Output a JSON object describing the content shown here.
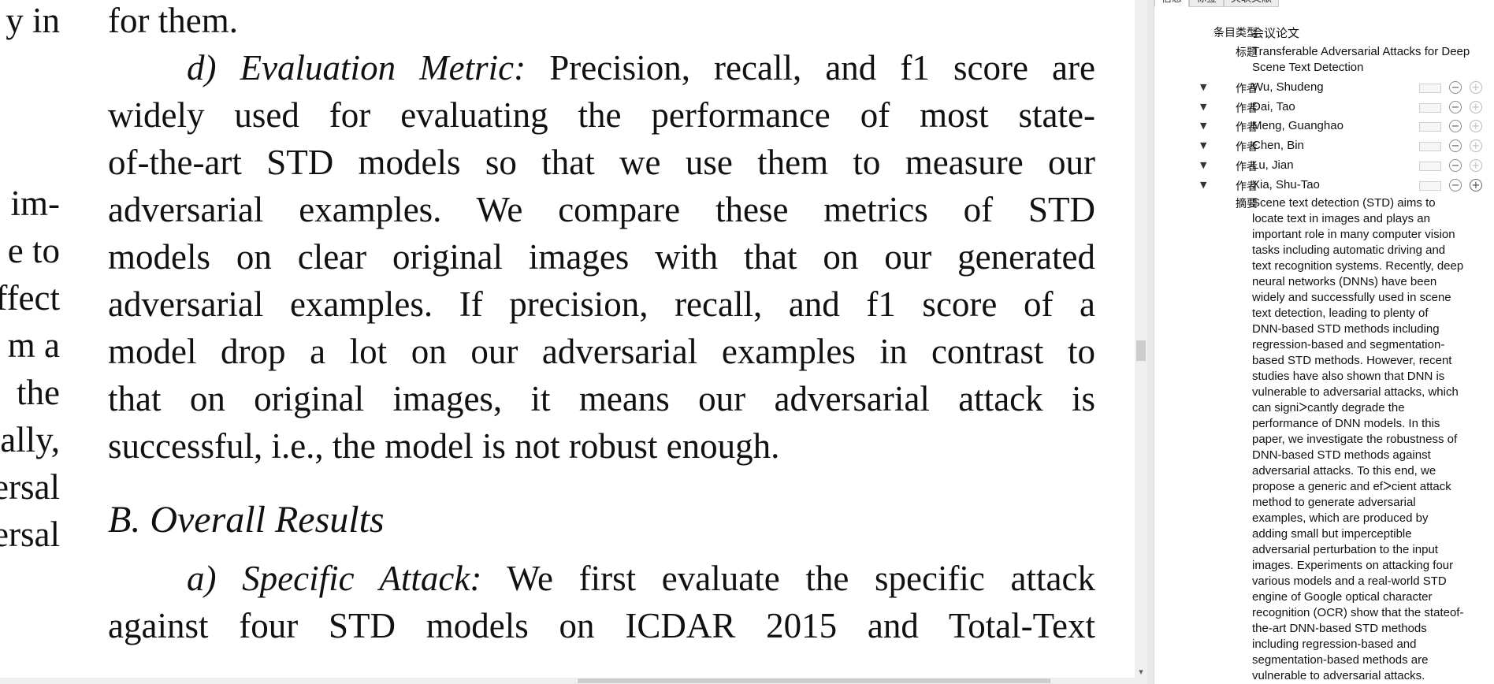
{
  "document": {
    "left_column_fragments": [
      "y in",
      "im-",
      "e to",
      "ffect",
      "m a",
      "the",
      "ally,",
      "ersal",
      "ersal"
    ],
    "main_lines": [
      {
        "text": "for them.",
        "style": "plain"
      },
      {
        "lead": "d) Evaluation Metric:",
        "text": " Precision, recall, and f1 score are",
        "style": "indent"
      },
      {
        "text": "widely used for evaluating the performance of most state-",
        "style": "justify"
      },
      {
        "text": "of-the-art STD models so that we use them to measure our",
        "style": "justify"
      },
      {
        "text": "adversarial examples. We compare these metrics of STD",
        "style": "justify"
      },
      {
        "text": "models on clear original images with that on our generated",
        "style": "justify"
      },
      {
        "text": "adversarial examples. If precision, recall, and f1 score of a",
        "style": "justify"
      },
      {
        "text": "model drop a lot on our adversarial examples in contrast to",
        "style": "justify"
      },
      {
        "text": "that on original images, it means our adversarial attack is",
        "style": "justify"
      },
      {
        "text": "successful, i.e., the model is not robust enough.",
        "style": "plain"
      },
      {
        "text": "B.  Overall Results",
        "style": "heading"
      },
      {
        "lead": "a) Specific Attack:",
        "text": " We first evaluate the specific attack",
        "style": "indent"
      },
      {
        "text": "against four STD models on ICDAR 2015 and Total-Text",
        "style": "justify"
      }
    ]
  },
  "info_pane": {
    "tabs": [
      "信息",
      "标签",
      "关联文献"
    ],
    "item_type": {
      "label": "条目类型",
      "value": "会议论文"
    },
    "title": {
      "label": "标题",
      "value": "Transferable Adversarial Attacks for Deep Scene Text Detection"
    },
    "author_label": "作者",
    "authors": [
      "Wu, Shudeng",
      "Dai, Tao",
      "Meng, Guanghao",
      "Chen, Bin",
      "Lu, Jian",
      "Xia, Shu-Tao"
    ],
    "abstract": {
      "label": "摘要",
      "lines": [
        "Scene text detection (STD) aims to",
        "locate text in images and plays an",
        "important role in many computer vision",
        "tasks including automatic driving and",
        "text recognition systems. Recently, deep",
        "neural networks (DNNs) have been",
        "widely and successfully used in scene",
        "text detection, leading to plenty of",
        "DNN-based STD methods including",
        "regression-based and segmentation-",
        "based STD methods. However, recent",
        "studies have also shown that DNN is",
        "vulnerable to adversarial attacks, which",
        "can signiᐳcantly degrade the",
        "performance of DNN models. In this",
        "paper, we investigate the robustness of",
        "DNN-based STD methods against",
        "adversarial attacks. To this end, we",
        "propose a generic and efᐳcient attack",
        "method to generate adversarial",
        "examples, which are produced by",
        "adding small but imperceptible",
        "adversarial perturbation to the input",
        "images. Experiments on attacking four",
        "various models and a real-world STD",
        "engine of Google optical character",
        "recognition (OCR) show that the stateof-",
        "the-art DNN-based STD methods",
        "including regression-based and",
        "segmentation-based methods are",
        "vulnerable to adversarial attacks."
      ]
    },
    "icons": {
      "expand": "triangle-down-icon",
      "remove": "minus-circle-icon",
      "add": "plus-circle-icon"
    }
  }
}
